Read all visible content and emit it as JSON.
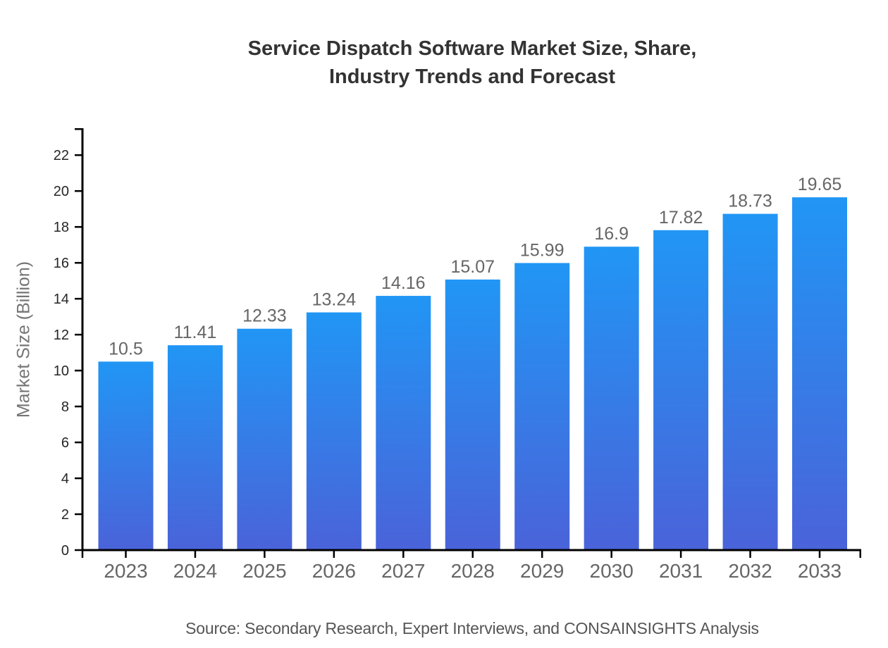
{
  "chart_data": {
    "type": "bar",
    "title_lines": [
      "Service Dispatch Software Market Size, Share,",
      "Industry Trends and Forecast"
    ],
    "categories": [
      "2023",
      "2024",
      "2025",
      "2026",
      "2027",
      "2028",
      "2029",
      "2030",
      "2031",
      "2032",
      "2033"
    ],
    "values": [
      10.5,
      11.41,
      12.33,
      13.24,
      14.16,
      15.07,
      15.99,
      16.9,
      17.82,
      18.73,
      19.65
    ],
    "value_labels": [
      "10.5",
      "11.41",
      "12.33",
      "13.24",
      "14.16",
      "15.07",
      "15.99",
      "16.9",
      "17.82",
      "18.73",
      "19.65"
    ],
    "xlabel": "",
    "ylabel": "Market Size (Billion)",
    "y_ticks": [
      0,
      2,
      4,
      6,
      8,
      10,
      12,
      14,
      16,
      18,
      20,
      22
    ],
    "ylim": [
      0,
      23.5
    ],
    "grid": false,
    "legend": null,
    "source": "Source: Secondary Research, Expert Interviews, and CONSAINSIGHTS Analysis"
  },
  "style": {
    "bar_gradient_top": "#2196F5",
    "bar_gradient_bottom": "#4A63D9",
    "axis_color": "#000000",
    "title_color": "#333333",
    "value_label_color": "#666666",
    "x_tick_label_color": "#666666",
    "y_tick_label_color": "#262626",
    "y_axis_title_color": "#757575",
    "source_color": "#555555",
    "background": "#ffffff"
  }
}
